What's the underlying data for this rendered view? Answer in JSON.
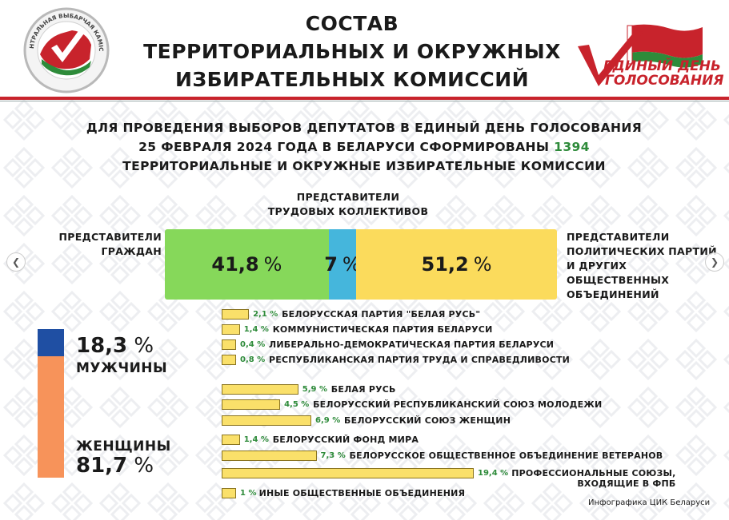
{
  "header": {
    "title_lines": [
      "СОСТАВ",
      "ТЕРРИТОРИАЛЬНЫХ И ОКРУЖНЫХ",
      "ИЗБИРАТЕЛЬНЫХ КОМИССИЙ"
    ],
    "left_logo_text": "ЦЕНТРАЛЬНАЯ ВЫБАРЧАЯ КАМІСІЯ",
    "right_logo_lines": [
      "ЕДИНЫЙ ДЕНЬ",
      "ГОЛОСОВАНИЯ"
    ]
  },
  "subtitle": {
    "line1": "ДЛЯ ПРОВЕДЕНИЯ ВЫБОРОВ ДЕПУТАТОВ В ЕДИНЫЙ ДЕНЬ ГОЛОСОВАНИЯ",
    "line2_prefix": "25 ФЕВРАЛЯ 2024 ГОДА В БЕЛАРУСИ СФОРМИРОВАНЫ",
    "line2_number": "1394",
    "line3": "ТЕРРИТОРИАЛЬНЫЕ И ОКРУЖНЫЕ ИЗБИРАТЕЛЬНЫЕ КОМИССИИ"
  },
  "chart_data": [
    {
      "type": "bar",
      "categories": [
        "ПРЕДСТАВИТЕЛИ ГРАЖДАН",
        "ПРЕДСТАВИТЕЛИ ТРУДОВЫХ КОЛЛЕКТИВОВ",
        "ПРЕДСТАВИТЕЛИ ПОЛИТИЧЕСКИХ ПАРТИЙ И ДРУГИХ ОБЩЕСТВЕННЫХ ОБЪЕДИНЕНИЙ"
      ],
      "values": [
        41.8,
        7,
        51.2
      ],
      "value_labels": [
        "41,8",
        "7",
        "51,2"
      ],
      "unit": "%",
      "label_lines": {
        "citizens": [
          "ПРЕДСТАВИТЕЛИ",
          "ГРАЖДАН"
        ],
        "labor": [
          "ПРЕДСТАВИТЕЛИ",
          "ТРУДОВЫХ КОЛЛЕКТИВОВ"
        ],
        "parties": [
          "ПРЕДСТАВИТЕЛИ",
          "ПОЛИТИЧЕСКИХ ПАРТИЙ",
          "И ДРУГИХ",
          "ОБЩЕСТВЕННЫХ",
          "ОБЪЕДИНЕНИЙ"
        ]
      },
      "colors": [
        "#86d85a",
        "#45b6dc",
        "#fbdb5c"
      ]
    },
    {
      "type": "bar",
      "categories": [
        "МУЖЧИНЫ",
        "ЖЕНЩИНЫ"
      ],
      "values": [
        18.3,
        81.7
      ],
      "value_labels": [
        "18,3",
        "81,7"
      ],
      "unit": "%",
      "colors": [
        "#1f4fa3",
        "#f7935a"
      ]
    },
    {
      "type": "bar",
      "groups": [
        "parties",
        "associations"
      ],
      "categories": [
        "БЕЛОРУССКАЯ ПАРТИЯ \"БЕЛАЯ РУСЬ\"",
        "КОММУНИСТИЧЕСКАЯ ПАРТИЯ БЕЛАРУСИ",
        "ЛИБЕРАЛЬНО-ДЕМОКРАТИЧЕСКАЯ ПАРТИЯ БЕЛАРУСИ",
        "РЕСПУБЛИКАНСКАЯ ПАРТИЯ ТРУДА И СПРАВЕДЛИВОСТИ",
        "БЕЛАЯ РУСЬ",
        "БЕЛОРУССКИЙ РЕСПУБЛИКАНСКИЙ СОЮЗ МОЛОДЕЖИ",
        "БЕЛОРУССКИЙ СОЮЗ ЖЕНЩИН",
        "БЕЛОРУССКИЙ ФОНД МИРА",
        "БЕЛОРУССКОЕ ОБЩЕСТВЕННОЕ ОБЪЕДИНЕНИЕ ВЕТЕРАНОВ",
        "ПРОФЕССИОНАЛЬНЫЕ СОЮЗЫ, ВХОДЯЩИЕ В ФПБ",
        "ИНЫЕ ОБЩЕСТВЕННЫЕ ОБЪЕДИНЕНИЯ"
      ],
      "name_lines": {
        "9": [
          "ПРОФЕССИОНАЛЬНЫЕ СОЮЗЫ,",
          "ВХОДЯЩИЕ В ФПБ"
        ]
      },
      "values": [
        2.1,
        1.4,
        0.4,
        0.8,
        5.9,
        4.5,
        6.9,
        1.4,
        7.3,
        19.4,
        1
      ],
      "value_labels": [
        "2,1 %",
        "1,4 %",
        "0,4 %",
        "0,8 %",
        "5,9 %",
        "4,5 %",
        "6,9 %",
        "1,4 %",
        "7,3 %",
        "19,4 %",
        "1 %"
      ],
      "group_of": [
        0,
        0,
        0,
        0,
        1,
        1,
        1,
        1,
        1,
        1,
        1
      ],
      "color": "#fae06a"
    }
  ],
  "caption": "Инфографика ЦИК Беларуси"
}
